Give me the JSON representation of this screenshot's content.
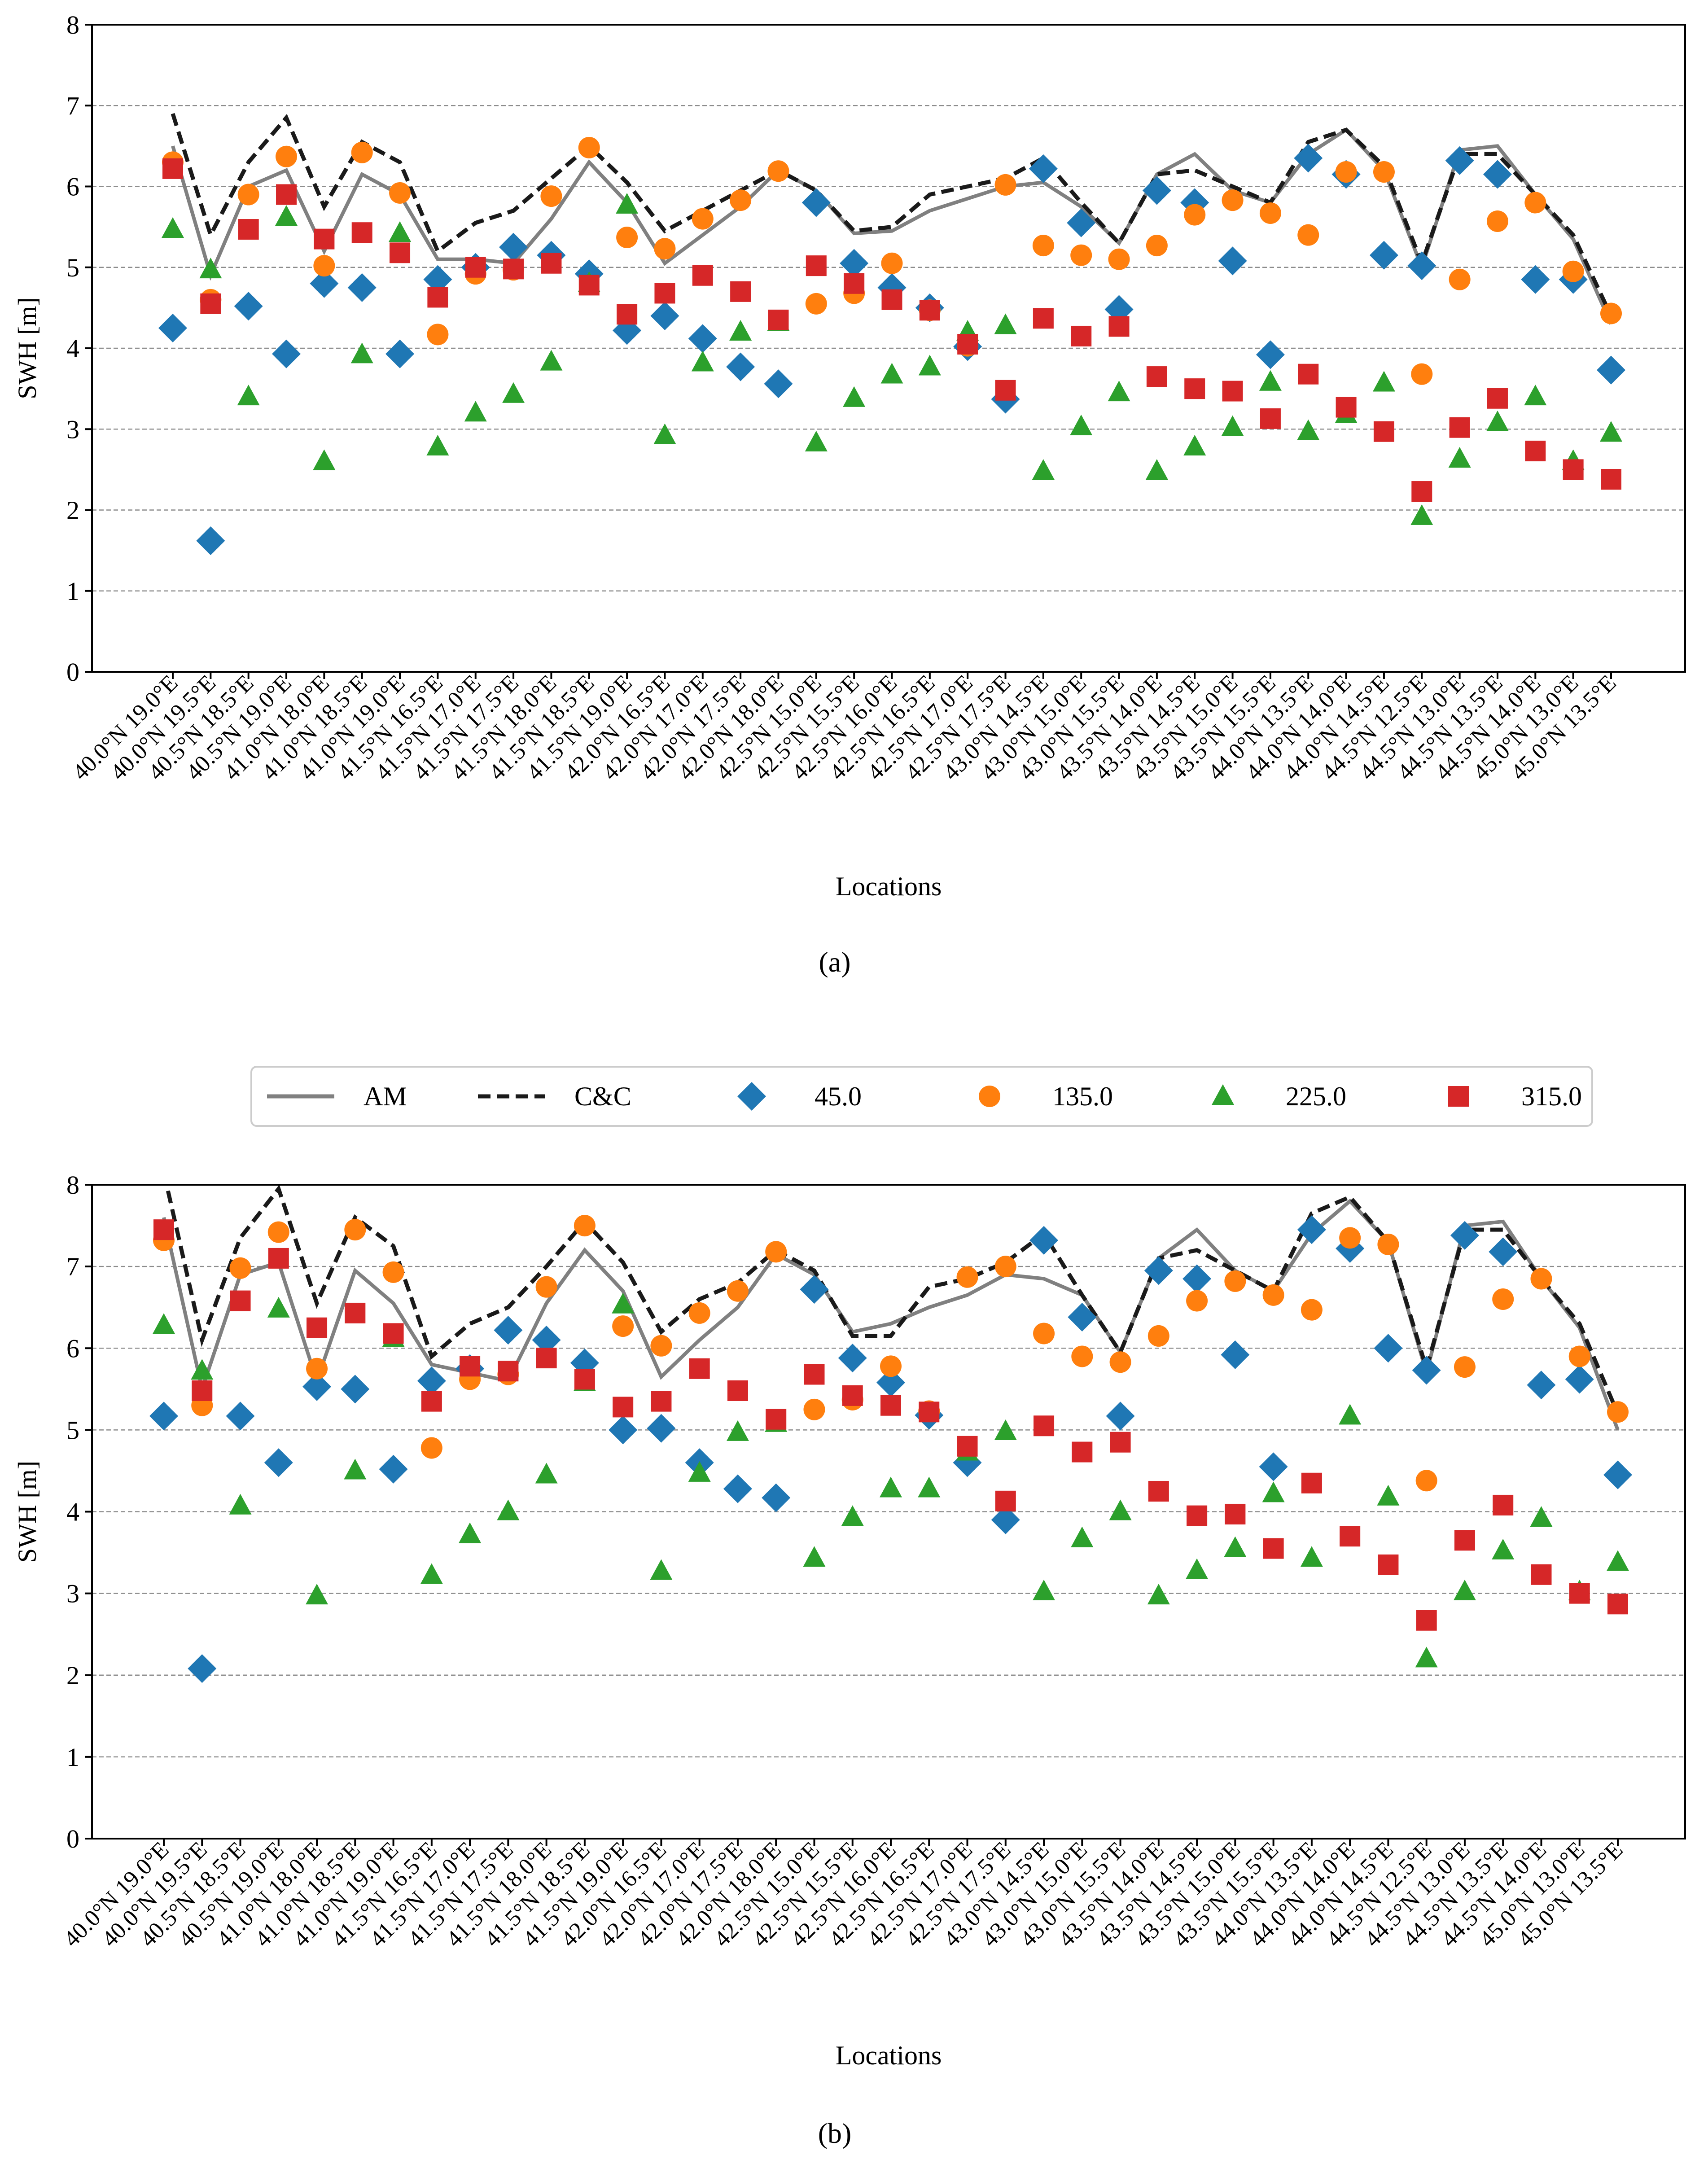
{
  "legend": {
    "entries": [
      {
        "label": "AM",
        "kind": "line",
        "color": "#808080",
        "dash": "solid"
      },
      {
        "label": "C&C",
        "kind": "line",
        "color": "#1a1a1a",
        "dash": "dashed"
      },
      {
        "label": "45.0",
        "kind": "diamond",
        "color": "#1f77b4"
      },
      {
        "label": "135.0",
        "kind": "circle",
        "color": "#ff7f0e"
      },
      {
        "label": "225.0",
        "kind": "triangle",
        "color": "#2ca02c"
      },
      {
        "label": "315.0",
        "kind": "square",
        "color": "#d62728"
      }
    ]
  },
  "chart_data": [
    {
      "type": "line+scatter",
      "panel_label": "(a)",
      "xlabel": "Locations",
      "ylabel": "SWH [m]",
      "ylim": [
        0,
        8
      ],
      "yticks": [
        0,
        1,
        2,
        3,
        4,
        5,
        6,
        7,
        8
      ],
      "grid": "horizontal dashed",
      "categories": [
        "40.0°N 19.0°E",
        "40.0°N 19.5°E",
        "40.5°N 18.5°E",
        "40.5°N 19.0°E",
        "41.0°N 18.0°E",
        "41.0°N 18.5°E",
        "41.0°N 19.0°E",
        "41.5°N 16.5°E",
        "41.5°N 17.0°E",
        "41.5°N 17.5°E",
        "41.5°N 18.0°E",
        "41.5°N 18.5°E",
        "41.5°N 19.0°E",
        "42.0°N 16.5°E",
        "42.0°N 17.0°E",
        "42.0°N 17.5°E",
        "42.0°N 18.0°E",
        "42.5°N 15.0°E",
        "42.5°N 15.5°E",
        "42.5°N 16.0°E",
        "42.5°N 16.5°E",
        "42.5°N 17.0°E",
        "42.5°N 17.5°E",
        "43.0°N 14.5°E",
        "43.0°N 15.0°E",
        "43.0°N 15.5°E",
        "43.5°N 14.0°E",
        "43.5°N 14.5°E",
        "43.5°N 15.0°E",
        "43.5°N 15.5°E",
        "44.0°N 13.5°E",
        "44.0°N 14.0°E",
        "44.0°N 14.5°E",
        "44.5°N 12.5°E",
        "44.5°N 13.0°E",
        "44.5°N 13.5°E",
        "44.5°N 14.0°E",
        "45.0°N 13.0°E",
        "45.0°N 13.5°E"
      ],
      "series": [
        {
          "name": "AM",
          "values": [
            6.5,
            4.9,
            6.0,
            6.2,
            5.2,
            6.15,
            5.9,
            5.1,
            5.1,
            5.05,
            5.6,
            6.3,
            5.8,
            5.05,
            5.4,
            5.75,
            6.2,
            5.95,
            5.42,
            5.45,
            5.7,
            5.85,
            6.0,
            6.05,
            5.75,
            5.3,
            6.15,
            6.4,
            5.95,
            5.8,
            6.4,
            6.7,
            6.2,
            5.0,
            6.45,
            6.5,
            5.9,
            5.35,
            4.3
          ]
        },
        {
          "name": "C&C",
          "values": [
            6.9,
            5.4,
            6.3,
            6.85,
            5.75,
            6.55,
            6.3,
            5.2,
            5.55,
            5.7,
            6.1,
            6.5,
            6.05,
            5.45,
            5.7,
            5.95,
            6.2,
            5.95,
            5.45,
            5.5,
            5.9,
            6.0,
            6.1,
            6.35,
            5.8,
            5.3,
            6.15,
            6.2,
            6.0,
            5.8,
            6.55,
            6.7,
            6.25,
            5.05,
            6.4,
            6.4,
            5.9,
            5.4,
            4.4
          ]
        },
        {
          "name": "45.0",
          "values": [
            4.25,
            1.62,
            4.52,
            3.93,
            4.8,
            4.75,
            3.93,
            4.85,
            5.0,
            5.25,
            5.15,
            4.92,
            4.22,
            4.4,
            4.12,
            3.77,
            3.56,
            5.8,
            5.05,
            4.75,
            4.5,
            4.02,
            3.37,
            6.22,
            5.55,
            4.48,
            5.95,
            5.8,
            5.08,
            3.92,
            6.35,
            6.15,
            5.15,
            5.02,
            6.32,
            6.15,
            4.85,
            4.85,
            3.73
          ]
        },
        {
          "name": "135.0",
          "values": [
            6.3,
            4.6,
            5.9,
            6.37,
            5.02,
            6.42,
            5.92,
            4.17,
            4.92,
            4.97,
            5.88,
            6.48,
            5.37,
            5.23,
            5.6,
            5.83,
            6.19,
            4.55,
            4.68,
            5.05,
            4.47,
            4.03,
            6.02,
            5.27,
            5.15,
            5.1,
            5.27,
            5.65,
            5.83,
            5.67,
            5.4,
            6.18,
            6.18,
            3.68,
            4.85,
            5.57,
            5.8,
            4.95,
            4.43
          ]
        },
        {
          "name": "225.0",
          "values": [
            5.47,
            4.97,
            3.4,
            5.62,
            2.6,
            3.92,
            5.42,
            2.78,
            3.2,
            3.43,
            3.83,
            4.8,
            5.77,
            2.92,
            3.82,
            4.2,
            4.32,
            2.83,
            3.38,
            3.67,
            3.77,
            4.2,
            4.28,
            2.48,
            3.03,
            3.45,
            2.48,
            2.78,
            3.02,
            3.58,
            2.97,
            3.18,
            3.57,
            1.92,
            2.63,
            3.08,
            3.4,
            2.6,
            2.95
          ]
        },
        {
          "name": "315.0",
          "values": [
            6.22,
            4.55,
            5.47,
            5.9,
            5.35,
            5.43,
            5.18,
            4.63,
            5.0,
            4.98,
            5.05,
            4.78,
            4.42,
            4.68,
            4.9,
            4.7,
            4.35,
            5.02,
            4.8,
            4.6,
            4.47,
            4.05,
            3.48,
            4.37,
            4.15,
            4.27,
            3.65,
            3.5,
            3.47,
            3.13,
            3.68,
            3.27,
            2.97,
            2.23,
            3.02,
            3.38,
            2.73,
            2.5,
            2.38
          ]
        }
      ]
    },
    {
      "type": "line+scatter",
      "panel_label": "(b)",
      "xlabel": "Locations",
      "ylabel": "SWH [m]",
      "ylim": [
        0,
        8
      ],
      "yticks": [
        0,
        1,
        2,
        3,
        4,
        5,
        6,
        7,
        8
      ],
      "grid": "horizontal dashed",
      "categories": [
        "40.0°N 19.0°E",
        "40.0°N 19.5°E",
        "40.5°N 18.5°E",
        "40.5°N 19.0°E",
        "41.0°N 18.0°E",
        "41.0°N 18.5°E",
        "41.0°N 19.0°E",
        "41.5°N 16.5°E",
        "41.5°N 17.0°E",
        "41.5°N 17.5°E",
        "41.5°N 18.0°E",
        "41.5°N 18.5°E",
        "41.5°N 19.0°E",
        "42.0°N 16.5°E",
        "42.0°N 17.0°E",
        "42.0°N 17.5°E",
        "42.0°N 18.0°E",
        "42.5°N 15.0°E",
        "42.5°N 15.5°E",
        "42.5°N 16.0°E",
        "42.5°N 16.5°E",
        "42.5°N 17.0°E",
        "42.5°N 17.5°E",
        "43.0°N 14.5°E",
        "43.0°N 15.0°E",
        "43.0°N 15.5°E",
        "43.5°N 14.0°E",
        "43.5°N 14.5°E",
        "43.5°N 15.0°E",
        "43.5°N 15.5°E",
        "44.0°N 13.5°E",
        "44.0°N 14.0°E",
        "44.0°N 14.5°E",
        "44.5°N 12.5°E",
        "44.5°N 13.0°E",
        "44.5°N 13.5°E",
        "44.5°N 14.0°E",
        "45.0°N 13.0°E",
        "45.0°N 13.5°E"
      ],
      "series": [
        {
          "name": "AM",
          "values": [
            7.6,
            5.5,
            6.9,
            7.05,
            5.6,
            6.95,
            6.55,
            5.8,
            5.7,
            5.6,
            6.55,
            7.2,
            6.7,
            5.65,
            6.1,
            6.5,
            7.15,
            6.9,
            6.2,
            6.3,
            6.5,
            6.65,
            6.9,
            6.85,
            6.65,
            5.95,
            7.1,
            7.45,
            6.95,
            6.7,
            7.4,
            7.8,
            7.3,
            5.7,
            7.5,
            7.55,
            6.85,
            6.25,
            5.0
          ]
        },
        {
          "name": "C&C",
          "values": [
            8.15,
            6.1,
            7.35,
            7.95,
            6.55,
            7.6,
            7.25,
            5.9,
            6.3,
            6.5,
            7.0,
            7.55,
            7.05,
            6.2,
            6.6,
            6.8,
            7.2,
            6.95,
            6.15,
            6.15,
            6.75,
            6.85,
            7.05,
            7.4,
            6.65,
            5.95,
            7.1,
            7.2,
            6.95,
            6.7,
            7.65,
            7.85,
            7.3,
            5.75,
            7.45,
            7.45,
            6.85,
            6.3,
            5.2
          ]
        },
        {
          "name": "45.0",
          "values": [
            5.17,
            2.08,
            5.17,
            4.6,
            5.53,
            5.5,
            4.52,
            5.6,
            5.75,
            6.22,
            6.1,
            5.82,
            5.0,
            5.02,
            4.6,
            4.28,
            4.17,
            6.72,
            5.88,
            5.58,
            5.18,
            4.6,
            3.9,
            7.32,
            6.38,
            5.17,
            6.95,
            6.85,
            5.92,
            4.55,
            7.45,
            7.22,
            6.0,
            5.73,
            7.38,
            7.18,
            5.55,
            5.62,
            4.45
          ]
        },
        {
          "name": "135.0",
          "values": [
            7.32,
            5.3,
            6.98,
            7.42,
            5.75,
            7.45,
            6.93,
            4.78,
            5.62,
            5.68,
            6.75,
            7.5,
            6.27,
            6.03,
            6.43,
            6.7,
            7.18,
            5.25,
            5.37,
            5.78,
            5.23,
            6.87,
            7.0,
            6.18,
            5.9,
            5.83,
            6.15,
            6.58,
            6.82,
            6.65,
            6.47,
            7.35,
            7.27,
            4.38,
            5.77,
            6.6,
            6.85,
            5.9,
            5.22
          ]
        },
        {
          "name": "225.0",
          "values": [
            6.28,
            5.72,
            4.07,
            6.48,
            2.97,
            4.5,
            6.12,
            3.22,
            3.72,
            4.0,
            4.45,
            5.58,
            6.53,
            3.27,
            4.47,
            4.97,
            5.08,
            3.43,
            3.93,
            4.28,
            4.28,
            4.73,
            4.98,
            3.02,
            3.67,
            4.0,
            2.97,
            3.28,
            3.55,
            4.22,
            3.43,
            5.17,
            4.18,
            2.2,
            3.02,
            3.52,
            3.92,
            3.02,
            3.38
          ]
        },
        {
          "name": "315.0",
          "values": [
            7.45,
            5.48,
            6.58,
            7.1,
            6.25,
            6.43,
            6.18,
            5.35,
            5.78,
            5.72,
            5.88,
            5.62,
            5.28,
            5.35,
            5.75,
            5.48,
            5.13,
            5.68,
            5.42,
            5.3,
            5.22,
            4.8,
            4.13,
            5.05,
            4.73,
            4.85,
            4.25,
            3.95,
            3.97,
            3.55,
            4.35,
            3.7,
            3.35,
            2.67,
            3.65,
            4.08,
            3.23,
            3.0,
            2.87
          ]
        }
      ]
    }
  ]
}
